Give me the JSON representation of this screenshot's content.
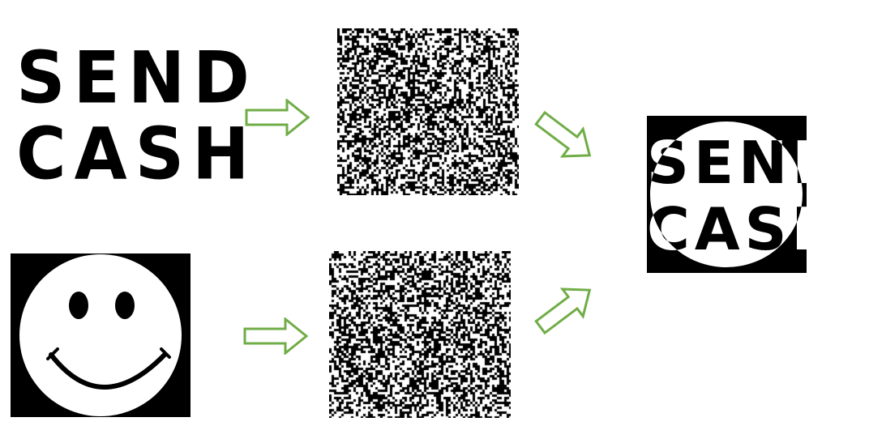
{
  "source_text": {
    "line_1": "SEND",
    "line_2": "CASH"
  },
  "result_text": {
    "line_1": "SEND",
    "line_2": "CASH"
  },
  "colors": {
    "arrow": "#70AD47",
    "ink": "#000000",
    "paper": "#ffffff"
  },
  "icons": {
    "source_a": "text-image",
    "source_b": "smiley-face-icon",
    "noise_a": "noise-pattern",
    "noise_b": "noise-pattern",
    "output": "overlay-image",
    "arrows": "arrow-icon"
  }
}
